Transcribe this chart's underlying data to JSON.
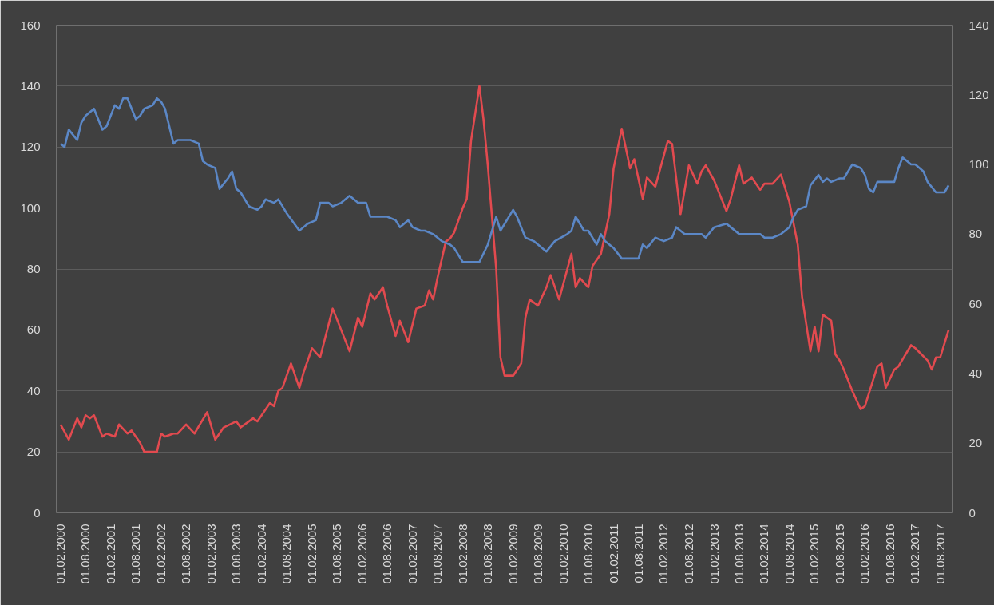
{
  "chart_data": {
    "type": "line",
    "grid": "y",
    "line_style": "solid",
    "xlim": [
      "2000-01",
      "2017-11"
    ],
    "xticks": [
      {
        "value": "2000-02",
        "label": "01.02.2000"
      },
      {
        "value": "2000-08",
        "label": "01.08.2000"
      },
      {
        "value": "2001-02",
        "label": "01.02.2001"
      },
      {
        "value": "2001-08",
        "label": "01.08.2001"
      },
      {
        "value": "2002-02",
        "label": "01.02.2002"
      },
      {
        "value": "2002-08",
        "label": "01.08.2002"
      },
      {
        "value": "2003-02",
        "label": "01.02.2003"
      },
      {
        "value": "2003-08",
        "label": "01.08.2003"
      },
      {
        "value": "2004-02",
        "label": "01.02.2004"
      },
      {
        "value": "2004-08",
        "label": "01.08.2004"
      },
      {
        "value": "2005-02",
        "label": "01.02.2005"
      },
      {
        "value": "2005-08",
        "label": "01.08.2005"
      },
      {
        "value": "2006-02",
        "label": "01.02.2006"
      },
      {
        "value": "2006-08",
        "label": "01.08.2006"
      },
      {
        "value": "2007-02",
        "label": "01.02.2007"
      },
      {
        "value": "2007-08",
        "label": "01.08.2007"
      },
      {
        "value": "2008-02",
        "label": "01.02.2008"
      },
      {
        "value": "2008-08",
        "label": "01.08.2008"
      },
      {
        "value": "2009-02",
        "label": "01.02.2009"
      },
      {
        "value": "2009-08",
        "label": "01.08.2009"
      },
      {
        "value": "2010-02",
        "label": "01.02.2010"
      },
      {
        "value": "2010-08",
        "label": "01.08.2010"
      },
      {
        "value": "2011-02",
        "label": "01.02.2011"
      },
      {
        "value": "2011-08",
        "label": "01.08.2011"
      },
      {
        "value": "2012-02",
        "label": "01.02.2012"
      },
      {
        "value": "2012-08",
        "label": "01.08.2012"
      },
      {
        "value": "2013-02",
        "label": "01.02.2013"
      },
      {
        "value": "2013-08",
        "label": "01.08.2013"
      },
      {
        "value": "2014-02",
        "label": "01.02.2014"
      },
      {
        "value": "2014-08",
        "label": "01.08.2014"
      },
      {
        "value": "2015-02",
        "label": "01.02.2015"
      },
      {
        "value": "2015-08",
        "label": "01.08.2015"
      },
      {
        "value": "2016-02",
        "label": "01.02.2016"
      },
      {
        "value": "2016-08",
        "label": "01.08.2016"
      },
      {
        "value": "2017-02",
        "label": "01.02.2017"
      },
      {
        "value": "2017-08",
        "label": "01.08.2017"
      }
    ],
    "ylim": [
      0,
      160
    ],
    "yticks": [
      0,
      20,
      40,
      60,
      80,
      100,
      120,
      140,
      160
    ],
    "y2lim": [
      0,
      140
    ],
    "y2ticks": [
      0,
      20,
      40,
      60,
      80,
      100,
      120,
      140
    ],
    "series": [
      {
        "color": "#e24a4f",
        "x": [
          "2000-02",
          "2000-04",
          "2000-06",
          "2000-07",
          "2000-08",
          "2000-09",
          "2000-10",
          "2000-12",
          "2001-01",
          "2001-03",
          "2001-04",
          "2001-06",
          "2001-07",
          "2001-09",
          "2001-10",
          "2002-01",
          "2002-02",
          "2002-03",
          "2002-05",
          "2002-06",
          "2002-08",
          "2002-10",
          "2003-01",
          "2003-03",
          "2003-05",
          "2003-08",
          "2003-09",
          "2003-12",
          "2004-01",
          "2004-02",
          "2004-04",
          "2004-05",
          "2004-06",
          "2004-07",
          "2004-09",
          "2004-11",
          "2004-12",
          "2005-02",
          "2005-04",
          "2005-07",
          "2005-11",
          "2006-01",
          "2006-02",
          "2006-04",
          "2006-05",
          "2006-07",
          "2006-08",
          "2006-10",
          "2006-11",
          "2007-01",
          "2007-03",
          "2007-05",
          "2007-06",
          "2007-07",
          "2007-08",
          "2007-10",
          "2007-11",
          "2007-12",
          "2008-02",
          "2008-03",
          "2008-04",
          "2008-06",
          "2008-07",
          "2008-08",
          "2008-10",
          "2008-11",
          "2008-12",
          "2009-02",
          "2009-04",
          "2009-05",
          "2009-06",
          "2009-08",
          "2009-10",
          "2009-11",
          "2010-01",
          "2010-04",
          "2010-05",
          "2010-06",
          "2010-08",
          "2010-09",
          "2010-11",
          "2011-01",
          "2011-02",
          "2011-04",
          "2011-06",
          "2011-07",
          "2011-09",
          "2011-10",
          "2011-12",
          "2012-03",
          "2012-04",
          "2012-06",
          "2012-08",
          "2012-10",
          "2012-11",
          "2012-12",
          "2013-02",
          "2013-05",
          "2013-06",
          "2013-08",
          "2013-09",
          "2013-11",
          "2014-01",
          "2014-02",
          "2014-04",
          "2014-06",
          "2014-08",
          "2014-10",
          "2014-11",
          "2015-01",
          "2015-02",
          "2015-03",
          "2015-04",
          "2015-06",
          "2015-07",
          "2015-08",
          "2015-09",
          "2015-11",
          "2016-01",
          "2016-02",
          "2016-05",
          "2016-06",
          "2016-07",
          "2016-09",
          "2016-10",
          "2017-01",
          "2017-02",
          "2017-05",
          "2017-06",
          "2017-07",
          "2017-08",
          "2017-10"
        ],
        "values": [
          29,
          24,
          31,
          28,
          32,
          31,
          32,
          25,
          26,
          25,
          29,
          26,
          27,
          23,
          20,
          20,
          26,
          25,
          26,
          26,
          29,
          26,
          33,
          24,
          28,
          30,
          28,
          31,
          30,
          32,
          36,
          35,
          40,
          41,
          49,
          41,
          46,
          54,
          51,
          67,
          53,
          64,
          61,
          72,
          70,
          74,
          68,
          58,
          63,
          56,
          67,
          68,
          73,
          70,
          77,
          89,
          90,
          92,
          100,
          103,
          122,
          140,
          129,
          114,
          80,
          51,
          45,
          45,
          49,
          64,
          70,
          68,
          74,
          78,
          70,
          85,
          74,
          77,
          74,
          81,
          85,
          98,
          113,
          126,
          113,
          116,
          103,
          110,
          107,
          122,
          121,
          98,
          114,
          108,
          112,
          114,
          109,
          99,
          103,
          114,
          108,
          110,
          106,
          108,
          108,
          111,
          102,
          88,
          71,
          53,
          61,
          53,
          65,
          63,
          52,
          50,
          47,
          40,
          34,
          35,
          48,
          49,
          41,
          47,
          48,
          55,
          54,
          50,
          47,
          51,
          51,
          60
        ]
      },
      {
        "color": "#5b87c6",
        "axis": "y2",
        "x": [
          "2000-02",
          "2000-03",
          "2000-04",
          "2000-06",
          "2000-07",
          "2000-08",
          "2000-10",
          "2000-12",
          "2001-01",
          "2001-03",
          "2001-04",
          "2001-05",
          "2001-06",
          "2001-08",
          "2001-09",
          "2001-10",
          "2001-12",
          "2002-01",
          "2002-02",
          "2002-03",
          "2002-05",
          "2002-06",
          "2002-09",
          "2002-11",
          "2002-12",
          "2003-01",
          "2003-03",
          "2003-04",
          "2003-06",
          "2003-07",
          "2003-08",
          "2003-09",
          "2003-11",
          "2004-01",
          "2004-02",
          "2004-03",
          "2004-05",
          "2004-06",
          "2004-08",
          "2004-11",
          "2004-12",
          "2005-01",
          "2005-03",
          "2005-04",
          "2005-06",
          "2005-07",
          "2005-09",
          "2005-11",
          "2006-01",
          "2006-03",
          "2006-04",
          "2006-06",
          "2006-08",
          "2006-10",
          "2006-11",
          "2007-01",
          "2007-02",
          "2007-04",
          "2007-05",
          "2007-07",
          "2007-09",
          "2007-11",
          "2007-12",
          "2008-02",
          "2008-04",
          "2008-06",
          "2008-08",
          "2008-10",
          "2008-11",
          "2009-02",
          "2009-03",
          "2009-05",
          "2009-07",
          "2009-08",
          "2009-10",
          "2009-12",
          "2010-03",
          "2010-04",
          "2010-05",
          "2010-07",
          "2010-08",
          "2010-10",
          "2010-11",
          "2010-12",
          "2011-02",
          "2011-04",
          "2011-06",
          "2011-08",
          "2011-09",
          "2011-10",
          "2011-12",
          "2012-02",
          "2012-04",
          "2012-05",
          "2012-07",
          "2012-08",
          "2012-11",
          "2012-12",
          "2013-02",
          "2013-05",
          "2013-06",
          "2013-08",
          "2013-11",
          "2014-01",
          "2014-02",
          "2014-04",
          "2014-06",
          "2014-08",
          "2014-09",
          "2014-10",
          "2014-12",
          "2015-01",
          "2015-03",
          "2015-04",
          "2015-05",
          "2015-06",
          "2015-08",
          "2015-09",
          "2015-11",
          "2016-01",
          "2016-02",
          "2016-03",
          "2016-04",
          "2016-05",
          "2016-07",
          "2016-09",
          "2016-10",
          "2016-11",
          "2017-01",
          "2017-02",
          "2017-04",
          "2017-05",
          "2017-07",
          "2017-09",
          "2017-10"
        ],
        "values": [
          106,
          105,
          110,
          107,
          112,
          114,
          116,
          110,
          111,
          117,
          116,
          119,
          119,
          113,
          114,
          116,
          117,
          119,
          118,
          116,
          106,
          107,
          107,
          106,
          101,
          100,
          99,
          93,
          96,
          98,
          93,
          92,
          88,
          87,
          88,
          90,
          89,
          90,
          86,
          81,
          82,
          83,
          84,
          89,
          89,
          88,
          89,
          91,
          89,
          89,
          85,
          85,
          85,
          84,
          82,
          84,
          82,
          81,
          81,
          80,
          78,
          77,
          76,
          72,
          72,
          72,
          77,
          85,
          81,
          87,
          85,
          79,
          78,
          77,
          75,
          78,
          80,
          81,
          85,
          81,
          81,
          77,
          80,
          78,
          76,
          73,
          73,
          73,
          77,
          76,
          79,
          78,
          79,
          82,
          80,
          80,
          80,
          79,
          82,
          83,
          82,
          80,
          80,
          80,
          79,
          79,
          80,
          82,
          85,
          87,
          88,
          94,
          97,
          95,
          96,
          95,
          96,
          96,
          100,
          99,
          97,
          93,
          92,
          95,
          95,
          95,
          99,
          102,
          100,
          100,
          98,
          95,
          92,
          92,
          94
        ]
      }
    ]
  }
}
